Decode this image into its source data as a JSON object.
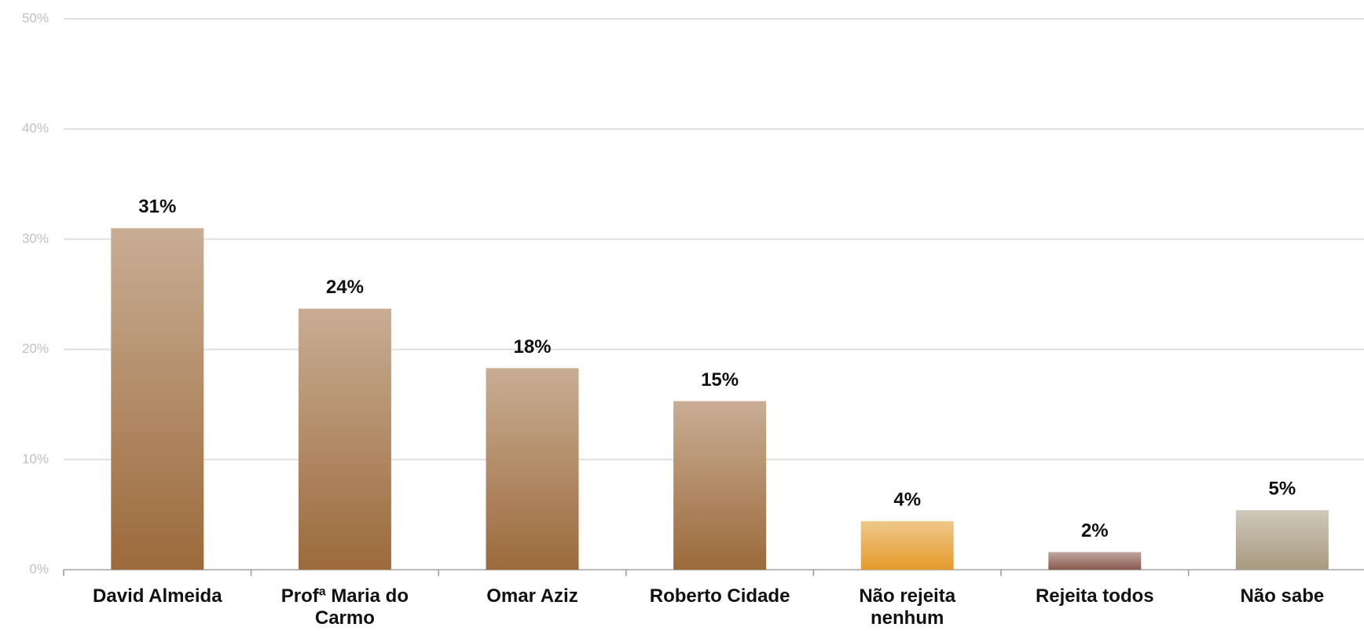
{
  "chart_data": {
    "type": "bar",
    "categories": [
      "David Almeida",
      "Profª Maria do Carmo",
      "Omar Aziz",
      "Roberto Cidade",
      "Não rejeita nenhum",
      "Rejeita todos",
      "Não sabe"
    ],
    "values": [
      31,
      23.7,
      18.3,
      15.3,
      4.4,
      1.6,
      5.4
    ],
    "value_labels": [
      "31%",
      "24%",
      "18%",
      "15%",
      "4%",
      "2%",
      "5%"
    ],
    "colors": [
      "#9c6a3c",
      "#9c6a3c",
      "#9c6a3c",
      "#9c6a3c",
      "#e39a2a",
      "#8a5a4e",
      "#a89a80"
    ],
    "ylim": [
      0,
      50
    ],
    "yticks": [
      {
        "value": 0,
        "label": "0%"
      },
      {
        "value": 10,
        "label": "10%"
      },
      {
        "value": 20,
        "label": "20%"
      },
      {
        "value": 30,
        "label": "30%"
      },
      {
        "value": 40,
        "label": "40%"
      },
      {
        "value": 50,
        "label": "50%"
      }
    ],
    "grid": true
  }
}
